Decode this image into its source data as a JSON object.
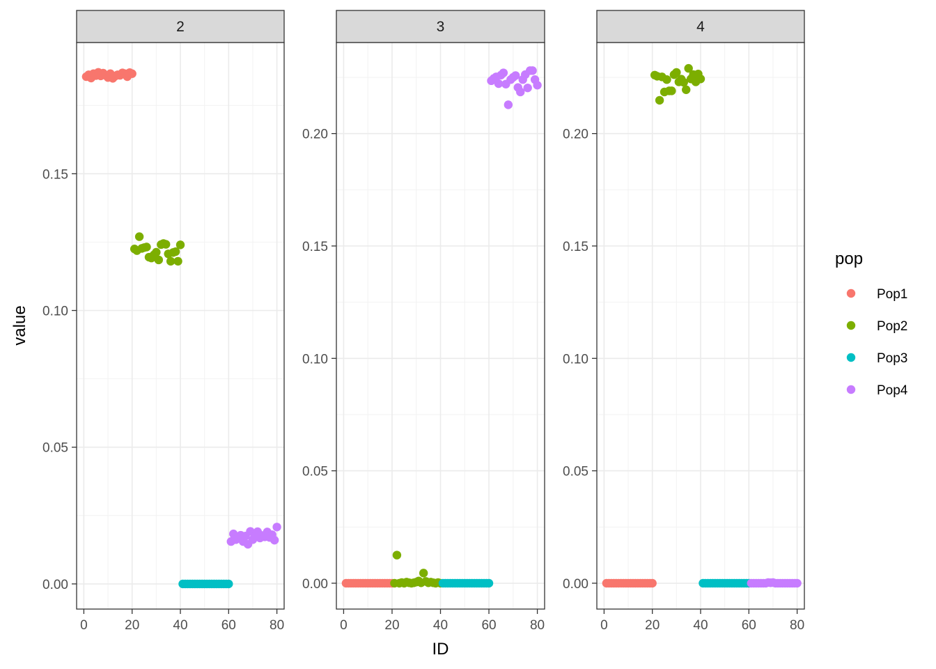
{
  "chart_data": {
    "type": "scatter",
    "facet_variable": "K",
    "xlabel": "ID",
    "ylabel": "value",
    "xlim": [
      -3,
      83
    ],
    "x_ticks": [
      0,
      20,
      40,
      60,
      80
    ],
    "x_tick_labels": [
      "0",
      "20",
      "40",
      "60",
      "80"
    ],
    "legend": {
      "title": "pop",
      "position": "right",
      "entries": [
        {
          "name": "Pop1",
          "color": "#F8766D"
        },
        {
          "name": "Pop2",
          "color": "#7CAE00"
        },
        {
          "name": "Pop3",
          "color": "#00BFC4"
        },
        {
          "name": "Pop4",
          "color": "#C77CFF"
        }
      ]
    },
    "panels": [
      {
        "label": "2",
        "ylim": [
          -0.0092,
          0.198
        ],
        "y_ticks": [
          0,
          0.05,
          0.1,
          0.15
        ],
        "y_tick_labels": [
          "0.00",
          "0.05",
          "0.10",
          "0.15"
        ],
        "series": [
          {
            "name": "Pop1",
            "x_start": 1,
            "values": [
              0.1855,
              0.1862,
              0.185,
              0.1866,
              0.1859,
              0.1871,
              0.1858,
              0.1868,
              0.186,
              0.1852,
              0.1866,
              0.1849,
              0.1857,
              0.1862,
              0.186,
              0.1869,
              0.1866,
              0.1855,
              0.187,
              0.1866
            ]
          },
          {
            "name": "Pop2",
            "x_start": 21,
            "values": [
              0.1225,
              0.1219,
              0.127,
              0.1227,
              0.123,
              0.1232,
              0.1195,
              0.1192,
              0.1203,
              0.1213,
              0.1185,
              0.1241,
              0.1245,
              0.1242,
              0.1207,
              0.118,
              0.1212,
              0.1215,
              0.118,
              0.124
            ]
          },
          {
            "name": "Pop3",
            "x_start": 41,
            "values": [
              0,
              0,
              0,
              0,
              0,
              0,
              0,
              0,
              0,
              0,
              0,
              0,
              0,
              0,
              0,
              0,
              0,
              0,
              0,
              0
            ]
          },
          {
            "name": "Pop4",
            "x_start": 61,
            "values": [
              0.0155,
              0.0183,
              0.0162,
              0.0172,
              0.0178,
              0.0155,
              0.0175,
              0.0145,
              0.0192,
              0.0162,
              0.0175,
              0.0191,
              0.0168,
              0.0177,
              0.0172,
              0.019,
              0.017,
              0.018,
              0.016,
              0.0208
            ]
          }
        ]
      },
      {
        "label": "3",
        "ylim": [
          -0.0115,
          0.2405
        ],
        "y_ticks": [
          0,
          0.05,
          0.1,
          0.15,
          0.2
        ],
        "y_tick_labels": [
          "0.00",
          "0.05",
          "0.10",
          "0.15",
          "0.20"
        ],
        "series": [
          {
            "name": "Pop1",
            "x_start": 1,
            "values": [
              0,
              0,
              0,
              0,
              0,
              0,
              0,
              0,
              0,
              0,
              0,
              0,
              0,
              0,
              0,
              0,
              0,
              0,
              0,
              0
            ]
          },
          {
            "name": "Pop2",
            "x_start": 21,
            "values": [
              0,
              0.0125,
              0,
              0.0003,
              0,
              0.0005,
              0.0002,
              0,
              0.0002,
              0.0005,
              0.001,
              0.0002,
              0.0045,
              0.0008,
              0.0002,
              0.0005,
              0.0002,
              0,
              0.0003,
              0
            ]
          },
          {
            "name": "Pop3",
            "x_start": 41,
            "values": [
              0,
              0,
              0,
              0,
              0,
              0,
              0,
              0,
              0,
              0,
              0,
              0,
              0,
              0,
              0,
              0,
              0,
              0,
              0,
              0
            ]
          },
          {
            "name": "Pop4",
            "x_start": 61,
            "values": [
              0.2235,
              0.2245,
              0.2252,
              0.2222,
              0.226,
              0.227,
              0.222,
              0.2128,
              0.224,
              0.225,
              0.2258,
              0.2205,
              0.2185,
              0.224,
              0.2262,
              0.2203,
              0.228,
              0.228,
              0.224,
              0.2215
            ]
          }
        ]
      },
      {
        "label": "4",
        "ylim": [
          -0.0115,
          0.2405
        ],
        "y_ticks": [
          0,
          0.05,
          0.1,
          0.15,
          0.2
        ],
        "y_tick_labels": [
          "0.00",
          "0.05",
          "0.10",
          "0.15",
          "0.20"
        ],
        "series": [
          {
            "name": "Pop1",
            "x_start": 1,
            "values": [
              0,
              0,
              0,
              0,
              0,
              0,
              0,
              0,
              0,
              0,
              0,
              0,
              0,
              0,
              0,
              0,
              0,
              0,
              0,
              0
            ]
          },
          {
            "name": "Pop2",
            "x_start": 21,
            "values": [
              0.226,
              0.2255,
              0.2148,
              0.2252,
              0.2185,
              0.224,
              0.219,
              0.219,
              0.2262,
              0.2272,
              0.223,
              0.2242,
              0.2228,
              0.2195,
              0.229,
              0.2243,
              0.2262,
              0.223,
              0.2265,
              0.2243
            ]
          },
          {
            "name": "Pop3",
            "x_start": 41,
            "values": [
              0,
              0,
              0,
              0,
              0,
              0,
              0,
              0,
              0,
              0,
              0,
              0,
              0,
              0,
              0,
              0,
              0,
              0,
              0,
              0
            ]
          },
          {
            "name": "Pop4",
            "x_start": 61,
            "values": [
              0,
              0,
              0,
              0,
              0,
              0,
              0,
              0.0003,
              0.0002,
              0.0003,
              0,
              0,
              0,
              0,
              0,
              0,
              0,
              0,
              0,
              0
            ]
          }
        ]
      }
    ]
  }
}
